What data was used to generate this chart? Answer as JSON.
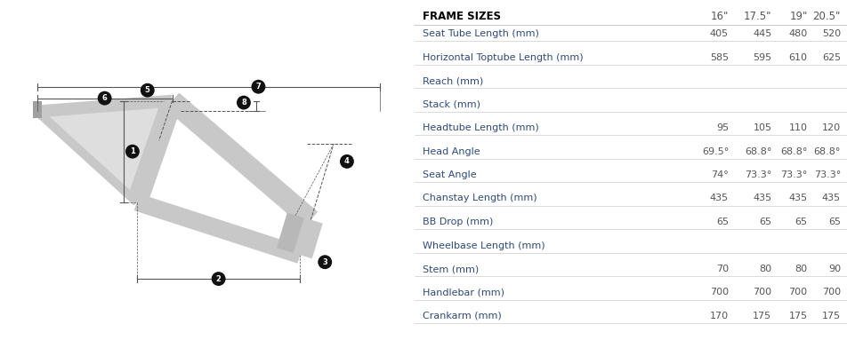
{
  "background_color": "#ffffff",
  "table_header": [
    "FRAME SIZES",
    "16\"",
    "17.5\"",
    "19\"",
    "20.5\""
  ],
  "rows": [
    {
      "label": "Seat Tube Length (mm)",
      "values": [
        "405",
        "445",
        "480",
        "520"
      ],
      "has_values": true
    },
    {
      "label": "Horizontal Toptube Length (mm)",
      "values": [
        "585",
        "595",
        "610",
        "625"
      ],
      "has_values": true
    },
    {
      "label": "Reach (mm)",
      "values": [
        "",
        "",
        "",
        ""
      ],
      "has_values": false
    },
    {
      "label": "Stack (mm)",
      "values": [
        "",
        "",
        "",
        ""
      ],
      "has_values": false
    },
    {
      "label": "Headtube Length (mm)",
      "values": [
        "95",
        "105",
        "110",
        "120"
      ],
      "has_values": true
    },
    {
      "label": "Head Angle",
      "values": [
        "69.5°",
        "68.8°",
        "68.8°",
        "68.8°"
      ],
      "has_values": true
    },
    {
      "label": "Seat Angle",
      "values": [
        "74°",
        "73.3°",
        "73.3°",
        "73.3°"
      ],
      "has_values": true
    },
    {
      "label": "Chanstay Length (mm)",
      "values": [
        "435",
        "435",
        "435",
        "435"
      ],
      "has_values": true
    },
    {
      "label": "BB Drop (mm)",
      "values": [
        "65",
        "65",
        "65",
        "65"
      ],
      "has_values": true
    },
    {
      "label": "Wheelbase Length (mm)",
      "values": [
        "",
        "",
        "",
        ""
      ],
      "has_values": false
    },
    {
      "label": "Stem (mm)",
      "values": [
        "70",
        "80",
        "80",
        "90"
      ],
      "has_values": true
    },
    {
      "label": "Handlebar (mm)",
      "values": [
        "700",
        "700",
        "700",
        "700"
      ],
      "has_values": true
    },
    {
      "label": "Crankarm (mm)",
      "values": [
        "170",
        "175",
        "175",
        "175"
      ],
      "has_values": true
    }
  ],
  "label_color": "#2e4a7a",
  "value_color": "#555555",
  "header_label_color": "#000000",
  "header_value_color": "#555555",
  "divider_color": "#cccccc",
  "frame_color": "#c8c8c8",
  "dim_color": "#444444",
  "annotation_bg": "#111111"
}
